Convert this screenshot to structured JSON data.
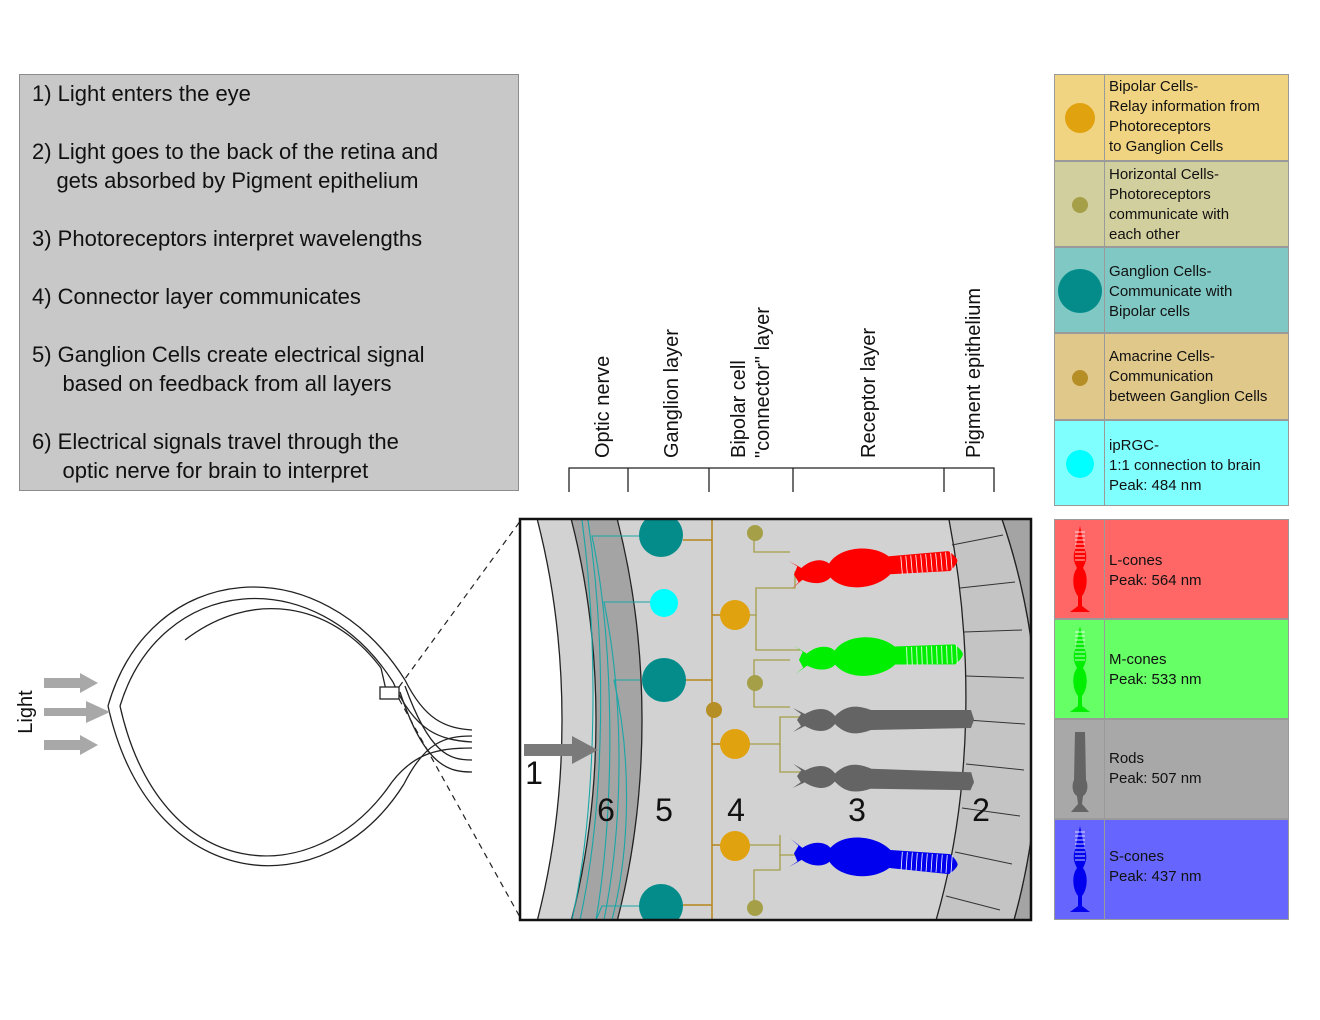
{
  "steps": [
    "1) Light enters the eye",
    "2) Light goes to the back of the retina and\n    gets absorbed by Pigment epithelium",
    "3) Photoreceptors interpret wavelengths",
    "4) Connector layer communicates",
    "5) Ganglion Cells create electrical signal\n     based on feedback from all layers",
    "6) Electrical signals travel through the\n     optic nerve for brain to interpret"
  ],
  "eye": {
    "light_label": "Light"
  },
  "layers": [
    {
      "label": "Optic nerve"
    },
    {
      "label": "Ganglion layer"
    },
    {
      "label": "Bipolar cell\n\"connector\" layer"
    },
    {
      "label": "Receptor layer"
    },
    {
      "label": "Pigment epithelium"
    }
  ],
  "region_numbers": [
    "1",
    "6",
    "5",
    "4",
    "3",
    "2"
  ],
  "cell_legend": [
    {
      "text": "Bipolar Cells-\nRelay information from\nPhotoreceptors\nto Ganglion Cells",
      "bg": "#f0d482",
      "dot": "#e0a20e"
    },
    {
      "text": "Horizontal Cells-\nPhotoreceptors\ncommunicate with\neach other",
      "bg": "#d2cf9e",
      "dot": "#a59f48"
    },
    {
      "text": "Ganglion Cells-\nCommunicate with\nBipolar cells",
      "bg": "#7fc8c4",
      "dot": "#038c8a"
    },
    {
      "text": "Amacrine Cells-\nCommunication\nbetween Ganglion Cells",
      "bg": "#e0c88a",
      "dot": "#b58e26"
    },
    {
      "text": "ipRGC-\n1:1 connection to brain\nPeak: 484 nm",
      "bg": "#80ffff",
      "dot": "#00ffff"
    }
  ],
  "receptor_legend": [
    {
      "name": "L-cones",
      "peak": "Peak: 564 nm",
      "bg": "#ff6767",
      "fg": "#ff0000"
    },
    {
      "name": "M-cones",
      "peak": "Peak: 533 nm",
      "bg": "#66ff66",
      "fg": "#00ee00"
    },
    {
      "name": "Rods",
      "peak": "Peak: 507 nm",
      "bg": "#a8a8a8",
      "fg": "#646464"
    },
    {
      "name": "S-cones",
      "peak": "Peak: 437 nm",
      "bg": "#6666ff",
      "fg": "#0000ee"
    }
  ]
}
